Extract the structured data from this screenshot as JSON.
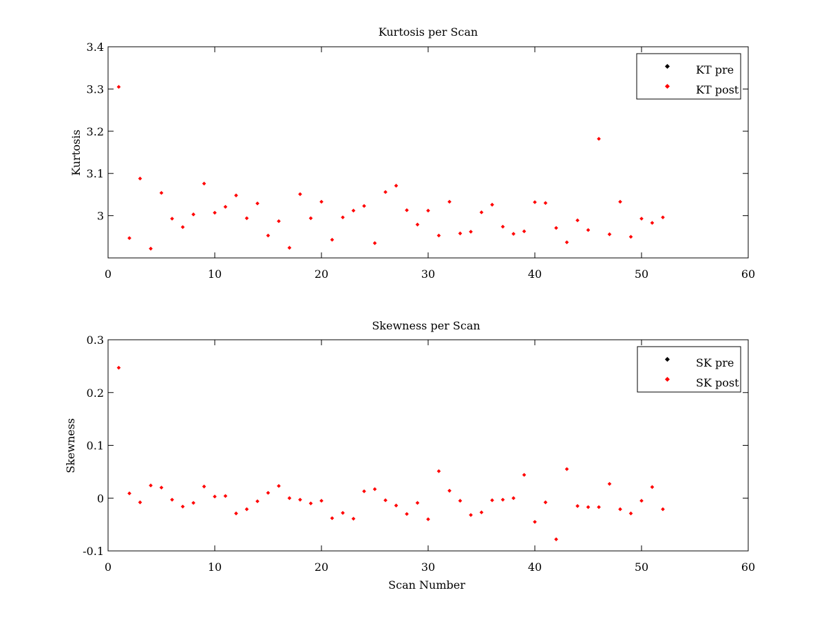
{
  "chart_data": [
    {
      "type": "scatter",
      "title": "Kurtosis per Scan",
      "xlabel": "",
      "ylabel": "Kurtosis",
      "xlim": [
        0,
        60
      ],
      "ylim": [
        2.9,
        3.4
      ],
      "xticks": [
        0,
        10,
        20,
        30,
        40,
        50,
        60
      ],
      "yticks": [
        3,
        3.1,
        3.2,
        3.3,
        3.4
      ],
      "xtick_labels": [
        "0",
        "10",
        "20",
        "30",
        "40",
        "50",
        "60"
      ],
      "ytick_labels": [
        "3",
        "3.1",
        "3.2",
        "3.3",
        "3.4"
      ],
      "grid": false,
      "legend_position": "top-right",
      "series": [
        {
          "name": "KT pre",
          "color": "#000000",
          "x": [],
          "y": []
        },
        {
          "name": "KT post",
          "color": "#ff0000",
          "x": [
            1,
            2,
            3,
            4,
            5,
            6,
            7,
            8,
            9,
            10,
            11,
            12,
            13,
            14,
            15,
            16,
            17,
            18,
            19,
            20,
            21,
            22,
            23,
            24,
            25,
            26,
            27,
            28,
            29,
            30,
            31,
            32,
            33,
            34,
            35,
            36,
            37,
            38,
            39,
            40,
            41,
            42,
            43,
            44,
            45,
            46,
            47,
            48,
            49,
            50,
            51,
            52
          ],
          "y": [
            3.305,
            2.947,
            3.088,
            2.922,
            3.054,
            2.993,
            2.973,
            3.003,
            3.076,
            3.007,
            3.021,
            3.048,
            2.994,
            3.029,
            2.953,
            2.987,
            2.924,
            3.051,
            2.994,
            3.033,
            2.943,
            2.996,
            3.012,
            3.023,
            2.935,
            3.056,
            3.071,
            3.013,
            2.979,
            3.012,
            2.953,
            3.033,
            2.958,
            2.962,
            3.008,
            3.026,
            2.974,
            2.957,
            2.963,
            3.032,
            3.03,
            2.971,
            2.937,
            2.989,
            2.966,
            3.182,
            2.956,
            3.033,
            2.95,
            2.993,
            2.983,
            2.996
          ]
        }
      ]
    },
    {
      "type": "scatter",
      "title": "Skewness per Scan",
      "xlabel": "Scan Number",
      "ylabel": "Skewness",
      "xlim": [
        0,
        60
      ],
      "ylim": [
        -0.1,
        0.3
      ],
      "xticks": [
        0,
        10,
        20,
        30,
        40,
        50,
        60
      ],
      "yticks": [
        -0.1,
        0,
        0.1,
        0.2,
        0.3
      ],
      "xtick_labels": [
        "0",
        "10",
        "20",
        "30",
        "40",
        "50",
        "60"
      ],
      "ytick_labels": [
        "-0.1",
        "0",
        "0.1",
        "0.2",
        "0.3"
      ],
      "grid": false,
      "legend_position": "top-right",
      "series": [
        {
          "name": "SK pre",
          "color": "#000000",
          "x": [],
          "y": []
        },
        {
          "name": "SK post",
          "color": "#ff0000",
          "x": [
            1,
            2,
            3,
            4,
            5,
            6,
            7,
            8,
            9,
            10,
            11,
            12,
            13,
            14,
            15,
            16,
            17,
            18,
            19,
            20,
            21,
            22,
            23,
            24,
            25,
            26,
            27,
            28,
            29,
            30,
            31,
            32,
            33,
            34,
            35,
            36,
            37,
            38,
            39,
            40,
            41,
            42,
            43,
            44,
            45,
            46,
            47,
            48,
            49,
            50,
            51,
            52
          ],
          "y": [
            0.247,
            0.009,
            -0.008,
            0.024,
            0.02,
            -0.003,
            -0.016,
            -0.009,
            0.022,
            0.003,
            0.004,
            -0.029,
            -0.021,
            -0.006,
            0.01,
            0.023,
            0.0,
            -0.003,
            -0.01,
            -0.005,
            -0.038,
            -0.028,
            -0.039,
            0.013,
            0.017,
            -0.004,
            -0.014,
            -0.03,
            -0.009,
            -0.04,
            0.051,
            0.014,
            -0.005,
            -0.032,
            -0.027,
            -0.004,
            -0.003,
            0.0,
            0.044,
            -0.045,
            -0.008,
            -0.078,
            0.055,
            -0.015,
            -0.017,
            -0.017,
            0.027,
            -0.021,
            -0.029,
            -0.005,
            0.021,
            -0.021
          ]
        }
      ]
    }
  ]
}
